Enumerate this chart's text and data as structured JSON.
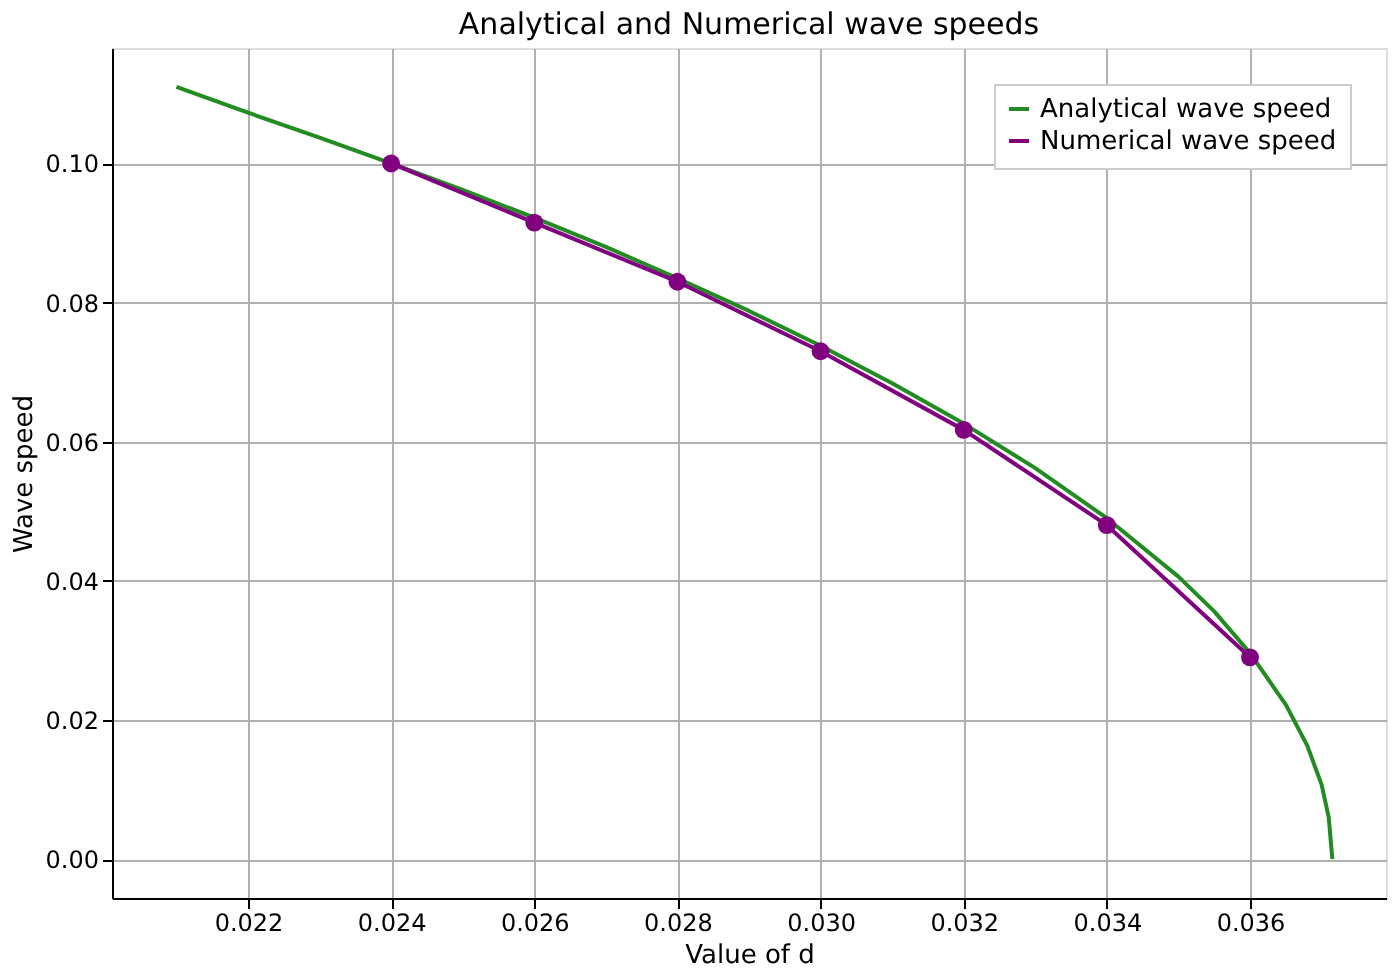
{
  "chart_data": {
    "type": "line",
    "title": "Analytical and Numerical wave speeds",
    "xlabel": "Value of d",
    "ylabel": "Wave speed",
    "xlim": [
      0.0201,
      0.0379
    ],
    "ylim": [
      -0.0056,
      0.1166
    ],
    "xticks": [
      0.022,
      0.024,
      0.026,
      0.028,
      {
        "value": 0.03,
        "label": "0.030"
      },
      0.032,
      0.034,
      0.036
    ],
    "yticks": [
      {
        "value": 0,
        "label": "0.00"
      },
      {
        "value": 0.02,
        "label": "0.02"
      },
      {
        "value": 0.04,
        "label": "0.04"
      },
      {
        "value": 0.06,
        "label": "0.06"
      },
      {
        "value": 0.08,
        "label": "0.08"
      },
      {
        "value": 0.1,
        "label": "0.10"
      }
    ],
    "grid": true,
    "legend": "top right",
    "series": [
      {
        "name": "Analytical wave speed",
        "color": "#228b22",
        "marker": "none",
        "x": [
          0.021,
          0.022,
          0.023,
          0.024,
          0.025,
          0.026,
          0.027,
          0.028,
          0.029,
          0.03,
          0.031,
          0.032,
          0.033,
          0.034,
          0.035,
          0.0355,
          0.036,
          0.0365,
          0.0368,
          0.037,
          0.0371,
          0.03715
        ],
        "values": [
          0.111,
          0.1073,
          0.1037,
          0.1,
          0.0962,
          0.0922,
          0.088,
          0.0835,
          0.0788,
          0.0738,
          0.0684,
          0.0626,
          0.0562,
          0.049,
          0.0406,
          0.0356,
          0.0296,
          0.0222,
          0.0163,
          0.0107,
          0.006,
          0.0
        ]
      },
      {
        "name": "Numerical wave speed",
        "color": "#800080",
        "marker": "circle",
        "x": [
          0.024,
          0.026,
          0.028,
          0.03,
          0.032,
          0.034,
          0.036
        ],
        "values": [
          0.1,
          0.0915,
          0.083,
          0.073,
          0.0617,
          0.048,
          0.029
        ]
      }
    ]
  }
}
